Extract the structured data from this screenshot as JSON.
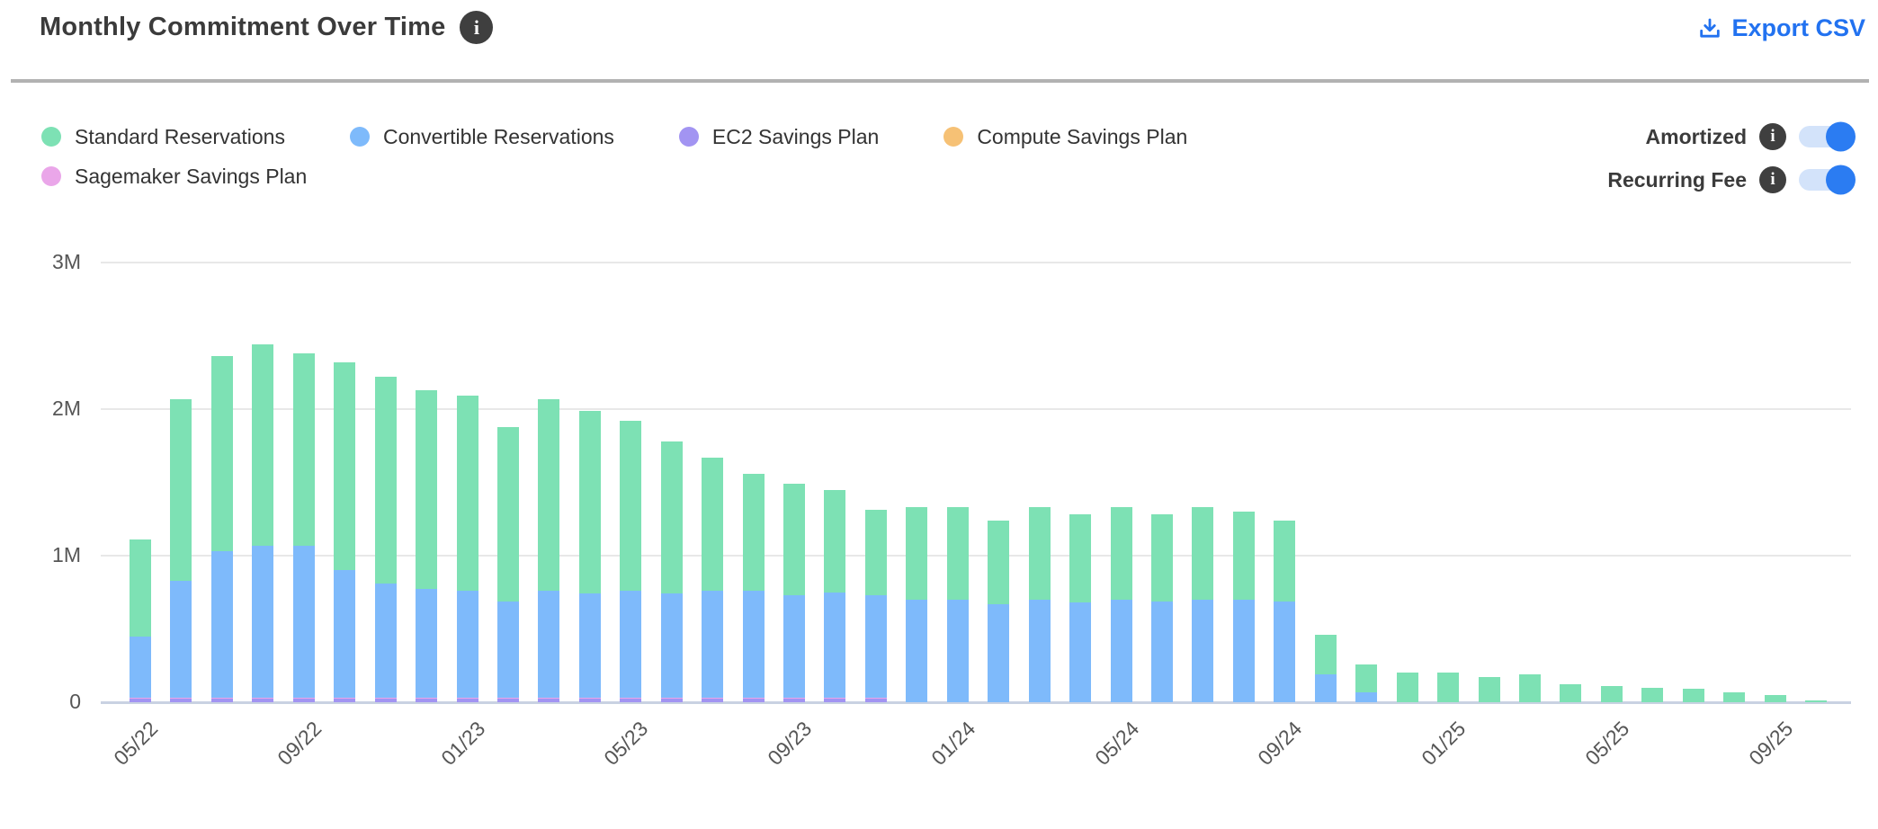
{
  "header": {
    "title": "Monthly Commitment Over Time",
    "export_label": "Export CSV"
  },
  "toggles": [
    {
      "label": "Amortized",
      "state": "on"
    },
    {
      "label": "Recurring Fee",
      "state": "on"
    }
  ],
  "colors": {
    "standard": "#7de1b4",
    "convertible": "#7ebafb",
    "ec2": "#a294f2",
    "compute": "#f6c175",
    "sagemaker": "#eaa6e9",
    "accent_blue": "#2272f0",
    "toggle_on": "#2b7cf2",
    "toggle_track": "#d3e3fa",
    "gridline": "#e8e8e8",
    "axis_line": "#c9d2e2",
    "tick_text": "#565656",
    "divider": "#b2b2b2",
    "info_icon_bg": "#3f3f3f"
  },
  "chart_data": {
    "type": "bar",
    "stacked": true,
    "title": "Monthly Commitment Over Time",
    "xlabel": "",
    "ylabel": "",
    "unit": "millions",
    "ylim": [
      0,
      3
    ],
    "ytick_labels": [
      "0",
      "1M",
      "2M",
      "3M"
    ],
    "ytick_values": [
      0,
      1,
      2,
      3
    ],
    "grid": true,
    "legend_position": "top-left",
    "x_tick_every": 4,
    "x": [
      "05/22",
      "06/22",
      "07/22",
      "08/22",
      "09/22",
      "10/22",
      "11/22",
      "12/22",
      "01/23",
      "02/23",
      "03/23",
      "04/23",
      "05/23",
      "06/23",
      "07/23",
      "08/23",
      "09/23",
      "10/23",
      "11/23",
      "12/23",
      "01/24",
      "02/24",
      "03/24",
      "04/24",
      "05/24",
      "06/24",
      "07/24",
      "08/24",
      "09/24",
      "10/24",
      "11/24",
      "12/24",
      "01/25",
      "02/25",
      "03/25",
      "04/25",
      "05/25",
      "06/25",
      "07/25",
      "08/25",
      "09/25",
      "10/25"
    ],
    "stack_order_bottom_to_top": [
      "EC2 Savings Plan",
      "Sagemaker Savings Plan",
      "Convertible Reservations",
      "Standard Reservations",
      "Compute Savings Plan"
    ],
    "series": [
      {
        "name": "Standard Reservations",
        "color": "#7de1b4",
        "values": [
          0.66,
          1.24,
          1.33,
          1.37,
          1.31,
          1.42,
          1.41,
          1.36,
          1.33,
          1.19,
          1.31,
          1.25,
          1.16,
          1.04,
          0.91,
          0.8,
          0.76,
          0.7,
          0.58,
          0.63,
          0.63,
          0.57,
          0.63,
          0.6,
          0.63,
          0.59,
          0.63,
          0.6,
          0.55,
          0.27,
          0.19,
          0.2,
          0.2,
          0.17,
          0.19,
          0.12,
          0.11,
          0.1,
          0.095,
          0.07,
          0.05,
          0.015
        ]
      },
      {
        "name": "Convertible Reservations",
        "color": "#7ebafb",
        "values": [
          0.42,
          0.8,
          1.0,
          1.04,
          1.04,
          0.87,
          0.78,
          0.74,
          0.73,
          0.66,
          0.73,
          0.71,
          0.73,
          0.71,
          0.73,
          0.73,
          0.7,
          0.72,
          0.7,
          0.7,
          0.7,
          0.67,
          0.7,
          0.68,
          0.7,
          0.69,
          0.7,
          0.7,
          0.69,
          0.19,
          0.07,
          0,
          0,
          0,
          0,
          0,
          0,
          0,
          0,
          0,
          0,
          0
        ]
      },
      {
        "name": "EC2 Savings Plan",
        "color": "#a294f2",
        "values": [
          0.025,
          0.025,
          0.025,
          0.025,
          0.025,
          0.025,
          0.025,
          0.025,
          0.025,
          0.025,
          0.025,
          0.025,
          0.025,
          0.025,
          0.025,
          0.025,
          0.025,
          0.025,
          0.025,
          0,
          0,
          0,
          0,
          0,
          0,
          0,
          0,
          0,
          0,
          0,
          0,
          0,
          0,
          0,
          0,
          0,
          0,
          0,
          0,
          0,
          0,
          0
        ]
      },
      {
        "name": "Compute Savings Plan",
        "color": "#f6c175",
        "values": [
          0,
          0,
          0,
          0,
          0,
          0,
          0,
          0,
          0,
          0,
          0,
          0,
          0,
          0,
          0,
          0,
          0,
          0,
          0,
          0,
          0,
          0,
          0,
          0,
          0,
          0,
          0,
          0,
          0,
          0,
          0,
          0,
          0,
          0,
          0,
          0,
          0,
          0,
          0,
          0,
          0,
          0
        ]
      },
      {
        "name": "Sagemaker Savings Plan",
        "color": "#eaa6e9",
        "values": [
          0.005,
          0.005,
          0.005,
          0.005,
          0.005,
          0.005,
          0.005,
          0.005,
          0.005,
          0.005,
          0.005,
          0.005,
          0.005,
          0.005,
          0.005,
          0.005,
          0.005,
          0.005,
          0.005,
          0,
          0,
          0,
          0,
          0,
          0,
          0,
          0,
          0,
          0,
          0,
          0,
          0,
          0,
          0,
          0,
          0,
          0,
          0,
          0,
          0,
          0,
          0
        ]
      }
    ]
  }
}
